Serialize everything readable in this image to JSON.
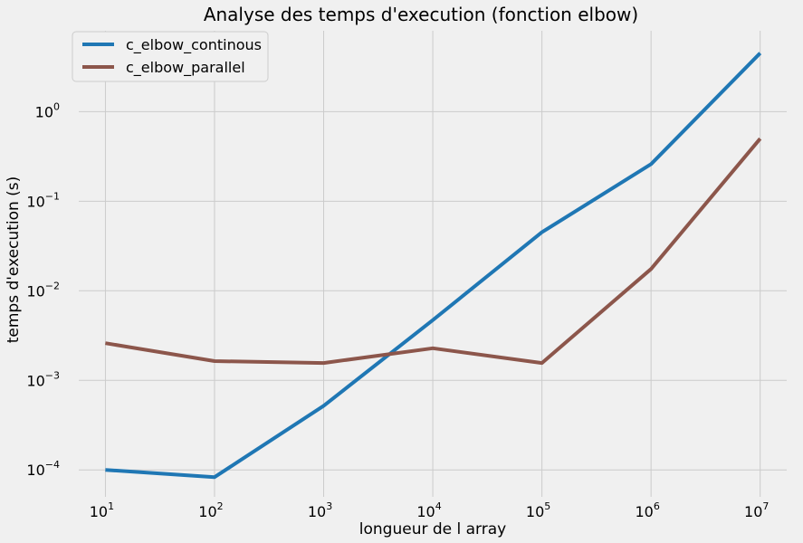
{
  "chart_data": {
    "type": "line",
    "title": "Analyse des temps d'execution (fonction elbow)",
    "xlabel": "longueur de l array",
    "ylabel": "temps d'execution (s)",
    "xscale": "log",
    "yscale": "log",
    "grid": true,
    "legend_position": "top-left",
    "x": [
      10,
      100,
      1000,
      10000,
      100000,
      1000000,
      10000000
    ],
    "x_tick_labels": [
      {
        "base": "10",
        "exp": "1"
      },
      {
        "base": "10",
        "exp": "2"
      },
      {
        "base": "10",
        "exp": "3"
      },
      {
        "base": "10",
        "exp": "4"
      },
      {
        "base": "10",
        "exp": "5"
      },
      {
        "base": "10",
        "exp": "6"
      },
      {
        "base": "10",
        "exp": "7"
      }
    ],
    "y_tick_labels": [
      {
        "base": "10",
        "exp": "0",
        "value": 1
      },
      {
        "base": "10",
        "exp": "−1",
        "value": 0.1
      },
      {
        "base": "10",
        "exp": "−2",
        "value": 0.01
      },
      {
        "base": "10",
        "exp": "−3",
        "value": 0.001
      },
      {
        "base": "10",
        "exp": "−4",
        "value": 0.0001
      }
    ],
    "xlim": [
      5.7,
      17500000.0
    ],
    "ylim": [
      5e-05,
      8.0
    ],
    "series": [
      {
        "name": "c_elbow_continous",
        "color": "#1f77b4",
        "values": [
          0.0001,
          8.3e-05,
          0.00052,
          0.0047,
          0.045,
          0.26,
          4.5
        ]
      },
      {
        "name": "c_elbow_parallel",
        "color": "#8c564b",
        "values": [
          0.0026,
          0.00164,
          0.00156,
          0.00228,
          0.00156,
          0.0175,
          0.5
        ]
      }
    ]
  }
}
